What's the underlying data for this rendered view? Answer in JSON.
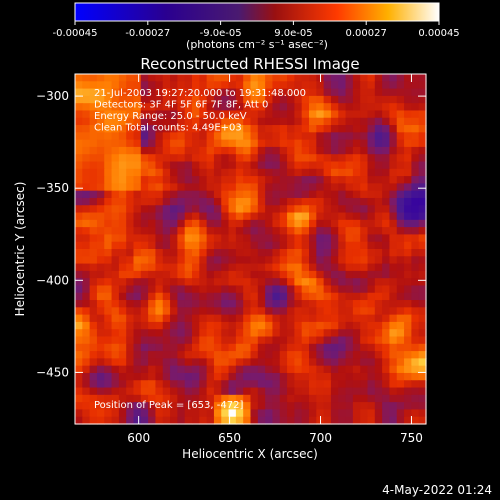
{
  "colorbar": {
    "tick_labels": [
      "-0.00045",
      "-0.00027",
      "-9.0e-05",
      "9.0e-05",
      "0.00027",
      "0.00045"
    ],
    "unit_label": "(photons cm⁻² s⁻¹ asec⁻²)"
  },
  "chart_data": {
    "type": "heatmap",
    "title": "Reconstructed RHESSI Image",
    "xlabel": "Heliocentric X (arcsec)",
    "ylabel": "Heliocentric Y (arcsec)",
    "xlim": [
      565,
      758
    ],
    "ylim": [
      -478,
      -288
    ],
    "x_ticks": [
      600,
      650,
      700,
      750
    ],
    "y_ticks": [
      -300,
      -350,
      -400,
      -450
    ],
    "colormap": [
      "#0000ff",
      "#3300a0",
      "#4a1a90",
      "#7a1a6a",
      "#b01010",
      "#e83000",
      "#ff7a00",
      "#ffd040",
      "#ffffff"
    ],
    "vmin": -0.00045,
    "vmax": 0.00045,
    "annotations": [
      "21-Jul-2003 19:27:20.000 to 19:31:48.000",
      "Detectors: 3F 4F 5F 6F 7F 8F, Att 0",
      "Energy Range: 25.0 - 50.0 keV",
      "Clean     Total counts: 4.49E+03"
    ],
    "peak_label": "Position of Peak = [653, -472]",
    "peak_position": [
      653,
      -472
    ]
  },
  "timestamp": "4-May-2022 01:24"
}
